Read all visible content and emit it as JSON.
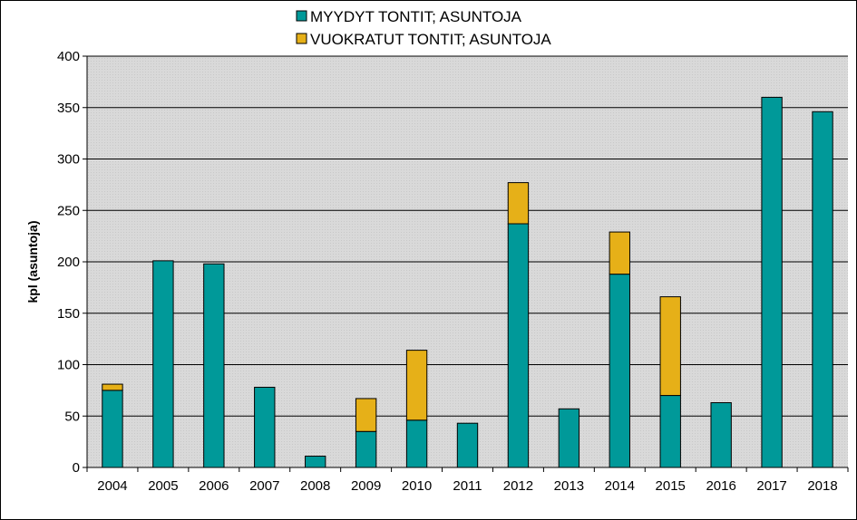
{
  "chart_data": {
    "type": "bar",
    "stacked": true,
    "categories": [
      "2004",
      "2005",
      "2006",
      "2007",
      "2008",
      "2009",
      "2010",
      "2011",
      "2012",
      "2013",
      "2014",
      "2015",
      "2016",
      "2017",
      "2018"
    ],
    "series": [
      {
        "name": "MYYDYT TONTIT; ASUNTOJA",
        "color": "#009999",
        "values": [
          75,
          201,
          198,
          78,
          11,
          35,
          46,
          43,
          237,
          57,
          188,
          70,
          63,
          360,
          346
        ]
      },
      {
        "name": "VUOKRATUT TONTIT; ASUNTOJA",
        "color": "#E6B018",
        "values": [
          6,
          0,
          0,
          0,
          0,
          32,
          68,
          0,
          40,
          0,
          41,
          96,
          0,
          0,
          0
        ]
      }
    ],
    "ylabel": "kpl (asuntoja)",
    "xlabel": "",
    "ylim": [
      0,
      400
    ],
    "yticks": [
      0,
      50,
      100,
      150,
      200,
      250,
      300,
      350,
      400
    ],
    "grid": true,
    "plot_background": "#DCDCDC",
    "legend_position": "top-center"
  }
}
